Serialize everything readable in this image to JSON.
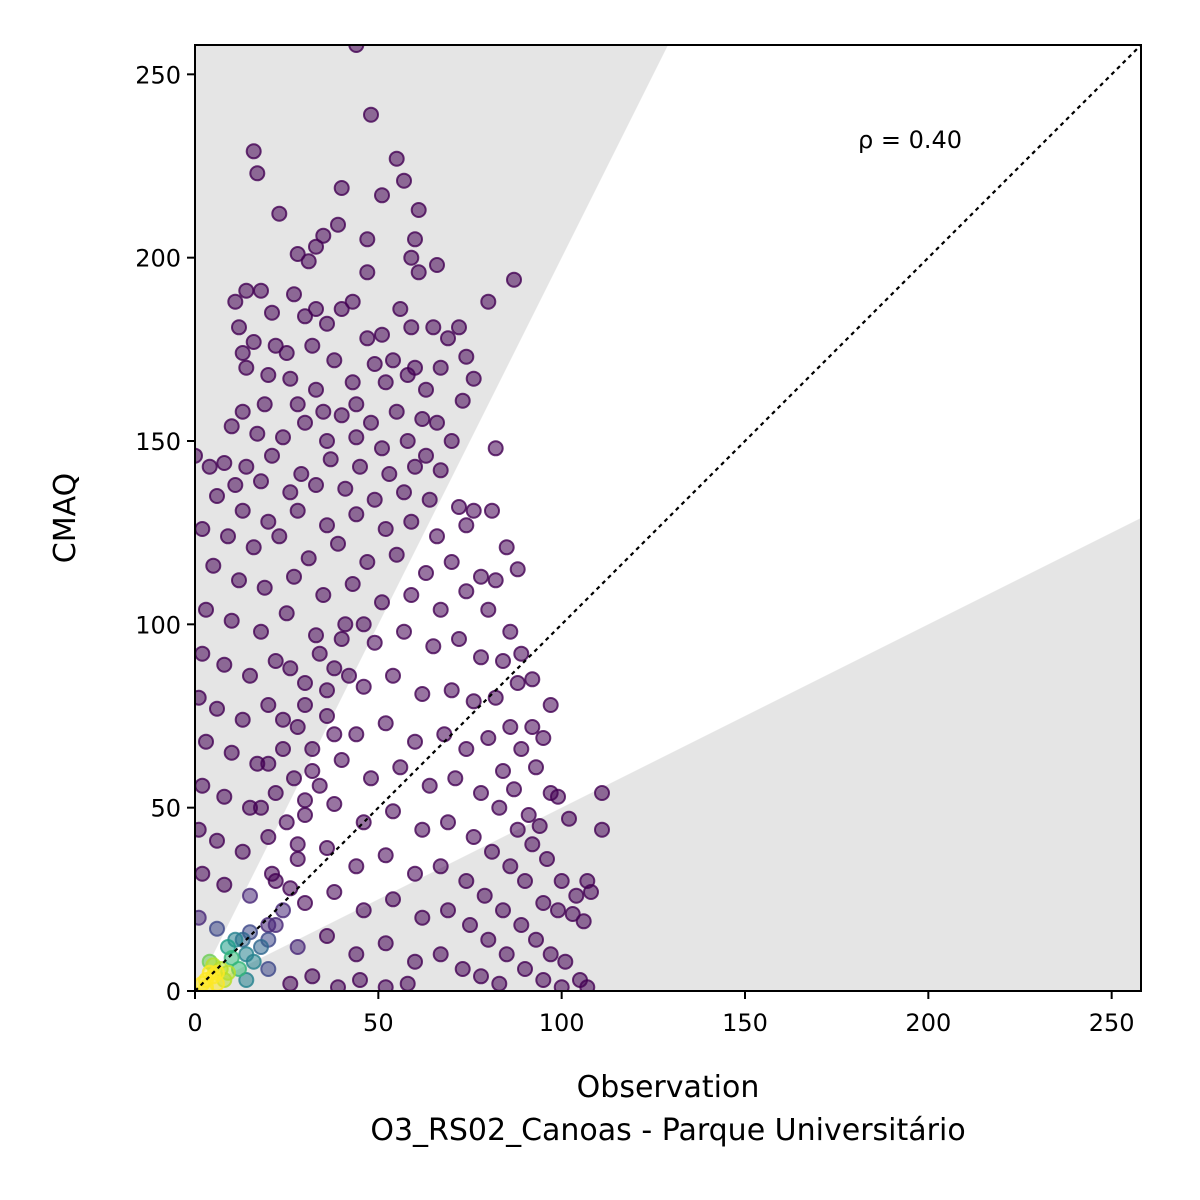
{
  "chart_data": {
    "type": "scatter",
    "title": "",
    "xlabel": "Observation",
    "xlabel_sub": "O3_RS02_Canoas - Parque Universitário",
    "ylabel": "CMAQ",
    "xlim": [
      0,
      258
    ],
    "ylim": [
      0,
      258
    ],
    "xticks": [
      0,
      50,
      100,
      150,
      200,
      250
    ],
    "yticks": [
      0,
      50,
      100,
      150,
      200,
      250
    ],
    "grid": false,
    "annotation": "ρ = 0.40",
    "reference_line": {
      "style": "dotted",
      "color": "#000000",
      "from": [
        0,
        0
      ],
      "to": [
        258,
        258
      ]
    },
    "factor_of_two_band": {
      "upper_slope": 2.0,
      "lower_slope": 0.5,
      "color": "#e5e5e5"
    },
    "colormap": "viridis",
    "density_colors": [
      "#440154",
      "#482878",
      "#3e4989",
      "#31688e",
      "#26828e",
      "#1f9e89",
      "#35b779",
      "#6ece58",
      "#b5de2b",
      "#fde725"
    ],
    "point_opacity": 0.55,
    "points": [
      [
        44,
        258
      ],
      [
        48,
        239
      ],
      [
        16,
        229
      ],
      [
        17,
        223
      ],
      [
        55,
        227
      ],
      [
        57,
        221
      ],
      [
        51,
        217
      ],
      [
        23,
        212
      ],
      [
        61,
        213
      ],
      [
        40,
        219
      ],
      [
        35,
        206
      ],
      [
        47,
        205
      ],
      [
        39,
        209
      ],
      [
        28,
        201
      ],
      [
        33,
        203
      ],
      [
        31,
        199
      ],
      [
        59,
        200
      ],
      [
        66,
        198
      ],
      [
        61,
        196
      ],
      [
        47,
        196
      ],
      [
        87,
        194
      ],
      [
        60,
        205
      ],
      [
        14,
        191
      ],
      [
        18,
        191
      ],
      [
        11,
        188
      ],
      [
        21,
        185
      ],
      [
        27,
        190
      ],
      [
        33,
        186
      ],
      [
        40,
        186
      ],
      [
        43,
        188
      ],
      [
        80,
        188
      ],
      [
        30,
        184
      ],
      [
        36,
        182
      ],
      [
        47,
        178
      ],
      [
        51,
        179
      ],
      [
        56,
        186
      ],
      [
        59,
        181
      ],
      [
        65,
        181
      ],
      [
        72,
        181
      ],
      [
        69,
        178
      ],
      [
        12,
        181
      ],
      [
        16,
        177
      ],
      [
        13,
        174
      ],
      [
        22,
        176
      ],
      [
        25,
        174
      ],
      [
        32,
        176
      ],
      [
        38,
        172
      ],
      [
        49,
        171
      ],
      [
        54,
        172
      ],
      [
        60,
        170
      ],
      [
        67,
        170
      ],
      [
        74,
        173
      ],
      [
        76,
        167
      ],
      [
        14,
        170
      ],
      [
        20,
        168
      ],
      [
        26,
        167
      ],
      [
        33,
        164
      ],
      [
        43,
        166
      ],
      [
        52,
        166
      ],
      [
        58,
        168
      ],
      [
        63,
        164
      ],
      [
        73,
        161
      ],
      [
        44,
        160
      ],
      [
        35,
        158
      ],
      [
        28,
        160
      ],
      [
        19,
        160
      ],
      [
        13,
        158
      ],
      [
        30,
        155
      ],
      [
        40,
        157
      ],
      [
        48,
        155
      ],
      [
        55,
        158
      ],
      [
        62,
        156
      ],
      [
        66,
        155
      ],
      [
        70,
        150
      ],
      [
        82,
        148
      ],
      [
        10,
        154
      ],
      [
        17,
        152
      ],
      [
        24,
        151
      ],
      [
        36,
        150
      ],
      [
        44,
        151
      ],
      [
        51,
        148
      ],
      [
        58,
        150
      ],
      [
        63,
        146
      ],
      [
        8,
        144
      ],
      [
        14,
        143
      ],
      [
        21,
        146
      ],
      [
        29,
        141
      ],
      [
        37,
        145
      ],
      [
        45,
        143
      ],
      [
        53,
        141
      ],
      [
        60,
        143
      ],
      [
        67,
        142
      ],
      [
        0,
        146
      ],
      [
        4,
        143
      ],
      [
        11,
        138
      ],
      [
        18,
        139
      ],
      [
        26,
        136
      ],
      [
        33,
        138
      ],
      [
        41,
        137
      ],
      [
        49,
        134
      ],
      [
        57,
        136
      ],
      [
        64,
        134
      ],
      [
        72,
        132
      ],
      [
        76,
        131
      ],
      [
        81,
        131
      ],
      [
        6,
        135
      ],
      [
        13,
        131
      ],
      [
        20,
        128
      ],
      [
        28,
        131
      ],
      [
        36,
        127
      ],
      [
        44,
        130
      ],
      [
        52,
        126
      ],
      [
        59,
        128
      ],
      [
        66,
        124
      ],
      [
        74,
        127
      ],
      [
        85,
        121
      ],
      [
        88,
        115
      ],
      [
        2,
        126
      ],
      [
        9,
        124
      ],
      [
        16,
        121
      ],
      [
        23,
        124
      ],
      [
        31,
        118
      ],
      [
        39,
        122
      ],
      [
        47,
        117
      ],
      [
        55,
        119
      ],
      [
        63,
        114
      ],
      [
        70,
        117
      ],
      [
        78,
        113
      ],
      [
        82,
        112
      ],
      [
        5,
        116
      ],
      [
        12,
        112
      ],
      [
        19,
        110
      ],
      [
        27,
        113
      ],
      [
        35,
        108
      ],
      [
        43,
        111
      ],
      [
        51,
        106
      ],
      [
        59,
        108
      ],
      [
        67,
        104
      ],
      [
        74,
        109
      ],
      [
        80,
        104
      ],
      [
        86,
        98
      ],
      [
        89,
        92
      ],
      [
        92,
        85
      ],
      [
        97,
        78
      ],
      [
        3,
        104
      ],
      [
        10,
        101
      ],
      [
        18,
        98
      ],
      [
        25,
        103
      ],
      [
        33,
        97
      ],
      [
        41,
        100
      ],
      [
        49,
        95
      ],
      [
        57,
        98
      ],
      [
        65,
        94
      ],
      [
        72,
        96
      ],
      [
        78,
        91
      ],
      [
        84,
        90
      ],
      [
        88,
        84
      ],
      [
        92,
        72
      ],
      [
        95,
        69
      ],
      [
        2,
        92
      ],
      [
        8,
        89
      ],
      [
        15,
        86
      ],
      [
        22,
        90
      ],
      [
        30,
        84
      ],
      [
        38,
        88
      ],
      [
        46,
        83
      ],
      [
        54,
        86
      ],
      [
        62,
        81
      ],
      [
        70,
        82
      ],
      [
        76,
        79
      ],
      [
        82,
        80
      ],
      [
        86,
        72
      ],
      [
        89,
        66
      ],
      [
        93,
        61
      ],
      [
        97,
        54
      ],
      [
        99,
        53
      ],
      [
        1,
        80
      ],
      [
        6,
        77
      ],
      [
        13,
        74
      ],
      [
        20,
        78
      ],
      [
        28,
        72
      ],
      [
        36,
        75
      ],
      [
        44,
        70
      ],
      [
        52,
        73
      ],
      [
        60,
        68
      ],
      [
        68,
        70
      ],
      [
        74,
        66
      ],
      [
        80,
        69
      ],
      [
        84,
        60
      ],
      [
        87,
        55
      ],
      [
        91,
        48
      ],
      [
        94,
        45
      ],
      [
        102,
        47
      ],
      [
        108,
        27
      ],
      [
        111,
        44
      ],
      [
        111,
        54
      ],
      [
        3,
        68
      ],
      [
        10,
        65
      ],
      [
        17,
        62
      ],
      [
        24,
        66
      ],
      [
        32,
        60
      ],
      [
        40,
        63
      ],
      [
        48,
        58
      ],
      [
        56,
        61
      ],
      [
        64,
        56
      ],
      [
        71,
        58
      ],
      [
        78,
        54
      ],
      [
        83,
        50
      ],
      [
        88,
        44
      ],
      [
        92,
        40
      ],
      [
        96,
        36
      ],
      [
        100,
        30
      ],
      [
        104,
        26
      ],
      [
        107,
        30
      ],
      [
        2,
        56
      ],
      [
        8,
        53
      ],
      [
        15,
        50
      ],
      [
        22,
        54
      ],
      [
        30,
        48
      ],
      [
        38,
        51
      ],
      [
        46,
        46
      ],
      [
        54,
        49
      ],
      [
        62,
        44
      ],
      [
        69,
        46
      ],
      [
        76,
        42
      ],
      [
        81,
        38
      ],
      [
        86,
        34
      ],
      [
        90,
        30
      ],
      [
        95,
        24
      ],
      [
        99,
        22
      ],
      [
        103,
        21
      ],
      [
        106,
        19
      ],
      [
        1,
        44
      ],
      [
        6,
        41
      ],
      [
        13,
        38
      ],
      [
        20,
        42
      ],
      [
        28,
        36
      ],
      [
        36,
        39
      ],
      [
        44,
        34
      ],
      [
        52,
        37
      ],
      [
        60,
        32
      ],
      [
        67,
        34
      ],
      [
        74,
        30
      ],
      [
        79,
        26
      ],
      [
        84,
        22
      ],
      [
        89,
        18
      ],
      [
        93,
        14
      ],
      [
        97,
        10
      ],
      [
        101,
        8
      ],
      [
        105,
        3
      ],
      [
        2,
        32
      ],
      [
        8,
        29
      ],
      [
        15,
        26
      ],
      [
        22,
        30
      ],
      [
        30,
        24
      ],
      [
        38,
        27
      ],
      [
        46,
        22
      ],
      [
        54,
        25
      ],
      [
        62,
        20
      ],
      [
        69,
        22
      ],
      [
        75,
        18
      ],
      [
        80,
        14
      ],
      [
        85,
        10
      ],
      [
        90,
        6
      ],
      [
        95,
        3
      ],
      [
        100,
        1
      ],
      [
        107,
        1
      ],
      [
        1,
        20
      ],
      [
        6,
        17
      ],
      [
        13,
        14
      ],
      [
        20,
        18
      ],
      [
        28,
        12
      ],
      [
        36,
        15
      ],
      [
        44,
        10
      ],
      [
        52,
        13
      ],
      [
        60,
        8
      ],
      [
        67,
        10
      ],
      [
        73,
        6
      ],
      [
        78,
        4
      ],
      [
        83,
        2
      ],
      [
        4,
        8
      ],
      [
        9,
        5
      ],
      [
        14,
        3
      ],
      [
        20,
        6
      ],
      [
        26,
        2
      ],
      [
        32,
        4
      ],
      [
        39,
        1
      ],
      [
        45,
        3
      ],
      [
        52,
        1
      ],
      [
        58,
        2
      ],
      [
        3,
        3
      ],
      [
        5,
        4
      ],
      [
        6,
        2
      ],
      [
        7,
        6
      ],
      [
        4,
        5
      ],
      [
        2,
        2
      ],
      [
        8,
        3
      ],
      [
        5,
        7
      ],
      [
        6,
        5
      ],
      [
        3,
        1
      ],
      [
        10,
        9
      ],
      [
        12,
        6
      ],
      [
        9,
        12
      ],
      [
        14,
        10
      ],
      [
        11,
        14
      ],
      [
        16,
        8
      ],
      [
        18,
        12
      ],
      [
        15,
        16
      ],
      [
        20,
        14
      ],
      [
        22,
        18
      ],
      [
        24,
        22
      ],
      [
        26,
        28
      ],
      [
        21,
        32
      ],
      [
        28,
        40
      ],
      [
        25,
        46
      ],
      [
        18,
        50
      ],
      [
        30,
        52
      ],
      [
        34,
        56
      ],
      [
        27,
        58
      ],
      [
        20,
        62
      ],
      [
        32,
        66
      ],
      [
        38,
        70
      ],
      [
        24,
        74
      ],
      [
        30,
        78
      ],
      [
        36,
        82
      ],
      [
        42,
        86
      ],
      [
        26,
        88
      ],
      [
        34,
        92
      ],
      [
        40,
        96
      ],
      [
        46,
        100
      ]
    ]
  }
}
